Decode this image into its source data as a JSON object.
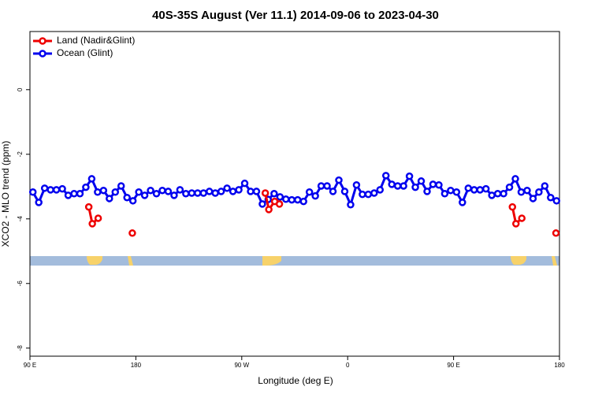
{
  "chart_data": {
    "type": "line",
    "title": "40S-35S August (Ver 11.1)   2014-09-06 to 2023-04-30",
    "xlabel": "Longitude (deg E)",
    "ylabel": "XCO2 - MLO trend (ppm)",
    "xlim": [
      90,
      540
    ],
    "ylim": [
      -8.25,
      1.8
    ],
    "xticks": [
      {
        "value": 90,
        "label": "90 E"
      },
      180,
      {
        "value": 270,
        "label": "90 W"
      },
      {
        "value": 360,
        "label": "0"
      },
      {
        "value": 450,
        "label": "90 E"
      },
      {
        "value": 540,
        "label": "180"
      }
    ],
    "yticks": [
      -8,
      -6,
      -4,
      -2,
      0
    ],
    "legend": "top-left",
    "series": [
      {
        "name": "Land (Nadir&Glint)",
        "color": "#ee0000",
        "x": [
          140,
          143,
          148,
          160,
          177,
          185,
          290,
          293,
          298,
          302,
          320,
          500,
          503,
          508,
          520,
          537
        ],
        "values": [
          -3.63,
          -4.15,
          -3.98,
          null,
          -4.44,
          null,
          -3.2,
          -3.71,
          -3.46,
          -3.54,
          null,
          -3.63,
          -4.15,
          -3.98,
          null,
          -4.44
        ]
      },
      {
        "name": "Ocean (Glint)",
        "color": "#0000ee",
        "x": [
          92.5,
          97.5,
          102.5,
          107.5,
          112.5,
          117.5,
          122.5,
          127.5,
          132.5,
          137.5,
          142.5,
          147.5,
          152.5,
          157.5,
          162.5,
          167.5,
          172.5,
          177.5,
          182.5,
          187.5,
          192.5,
          197.5,
          202.5,
          207.5,
          212.5,
          217.5,
          222.5,
          227.5,
          232.5,
          237.5,
          242.5,
          247.5,
          252.5,
          257.5,
          262.5,
          267.5,
          272.5,
          277.5,
          282.5,
          287.5,
          292.5,
          297.5,
          302.5,
          307.5,
          312.5,
          317.5,
          322.5,
          327.5,
          332.5,
          337.5,
          342.5,
          347.5,
          352.5,
          357.5,
          362.5,
          367.5,
          372.5,
          377.5,
          382.5,
          387.5,
          392.5,
          397.5,
          402.5,
          407.5,
          412.5,
          417.5,
          422.5,
          427.5,
          432.5,
          437.5,
          442.5,
          447.5,
          452.5,
          457.5,
          462.5,
          467.5,
          472.5,
          477.5,
          482.5,
          487.5,
          492.5,
          497.5,
          502.5,
          507.5,
          512.5,
          517.5,
          522.5,
          527.5,
          532.5,
          537.5
        ],
        "values": [
          -3.17,
          -3.49,
          -3.05,
          -3.1,
          -3.1,
          -3.07,
          -3.27,
          -3.22,
          -3.22,
          -3.02,
          -2.76,
          -3.17,
          -3.12,
          -3.37,
          -3.17,
          -2.98,
          -3.34,
          -3.44,
          -3.17,
          -3.27,
          -3.12,
          -3.22,
          -3.12,
          -3.15,
          -3.27,
          -3.1,
          -3.22,
          -3.2,
          -3.2,
          -3.2,
          -3.15,
          -3.2,
          -3.15,
          -3.05,
          -3.15,
          -3.1,
          -2.9,
          -3.15,
          -3.15,
          -3.54,
          -3.4,
          -3.22,
          -3.32,
          -3.39,
          -3.41,
          -3.41,
          -3.46,
          -3.17,
          -3.29,
          -2.98,
          -2.98,
          -3.15,
          -2.8,
          -3.15,
          -3.56,
          -2.95,
          -3.24,
          -3.24,
          -3.2,
          -3.1,
          -2.66,
          -2.93,
          -2.98,
          -2.98,
          -2.68,
          -3.02,
          -2.83,
          -3.15,
          -2.93,
          -2.95,
          -3.22,
          -3.12,
          -3.17,
          -3.49,
          -3.05,
          -3.1,
          -3.1,
          -3.07,
          -3.27,
          -3.22,
          -3.22,
          -3.02,
          -2.76,
          -3.17,
          -3.12,
          -3.37,
          -3.17,
          -2.98,
          -3.34,
          -3.44
        ]
      }
    ]
  }
}
